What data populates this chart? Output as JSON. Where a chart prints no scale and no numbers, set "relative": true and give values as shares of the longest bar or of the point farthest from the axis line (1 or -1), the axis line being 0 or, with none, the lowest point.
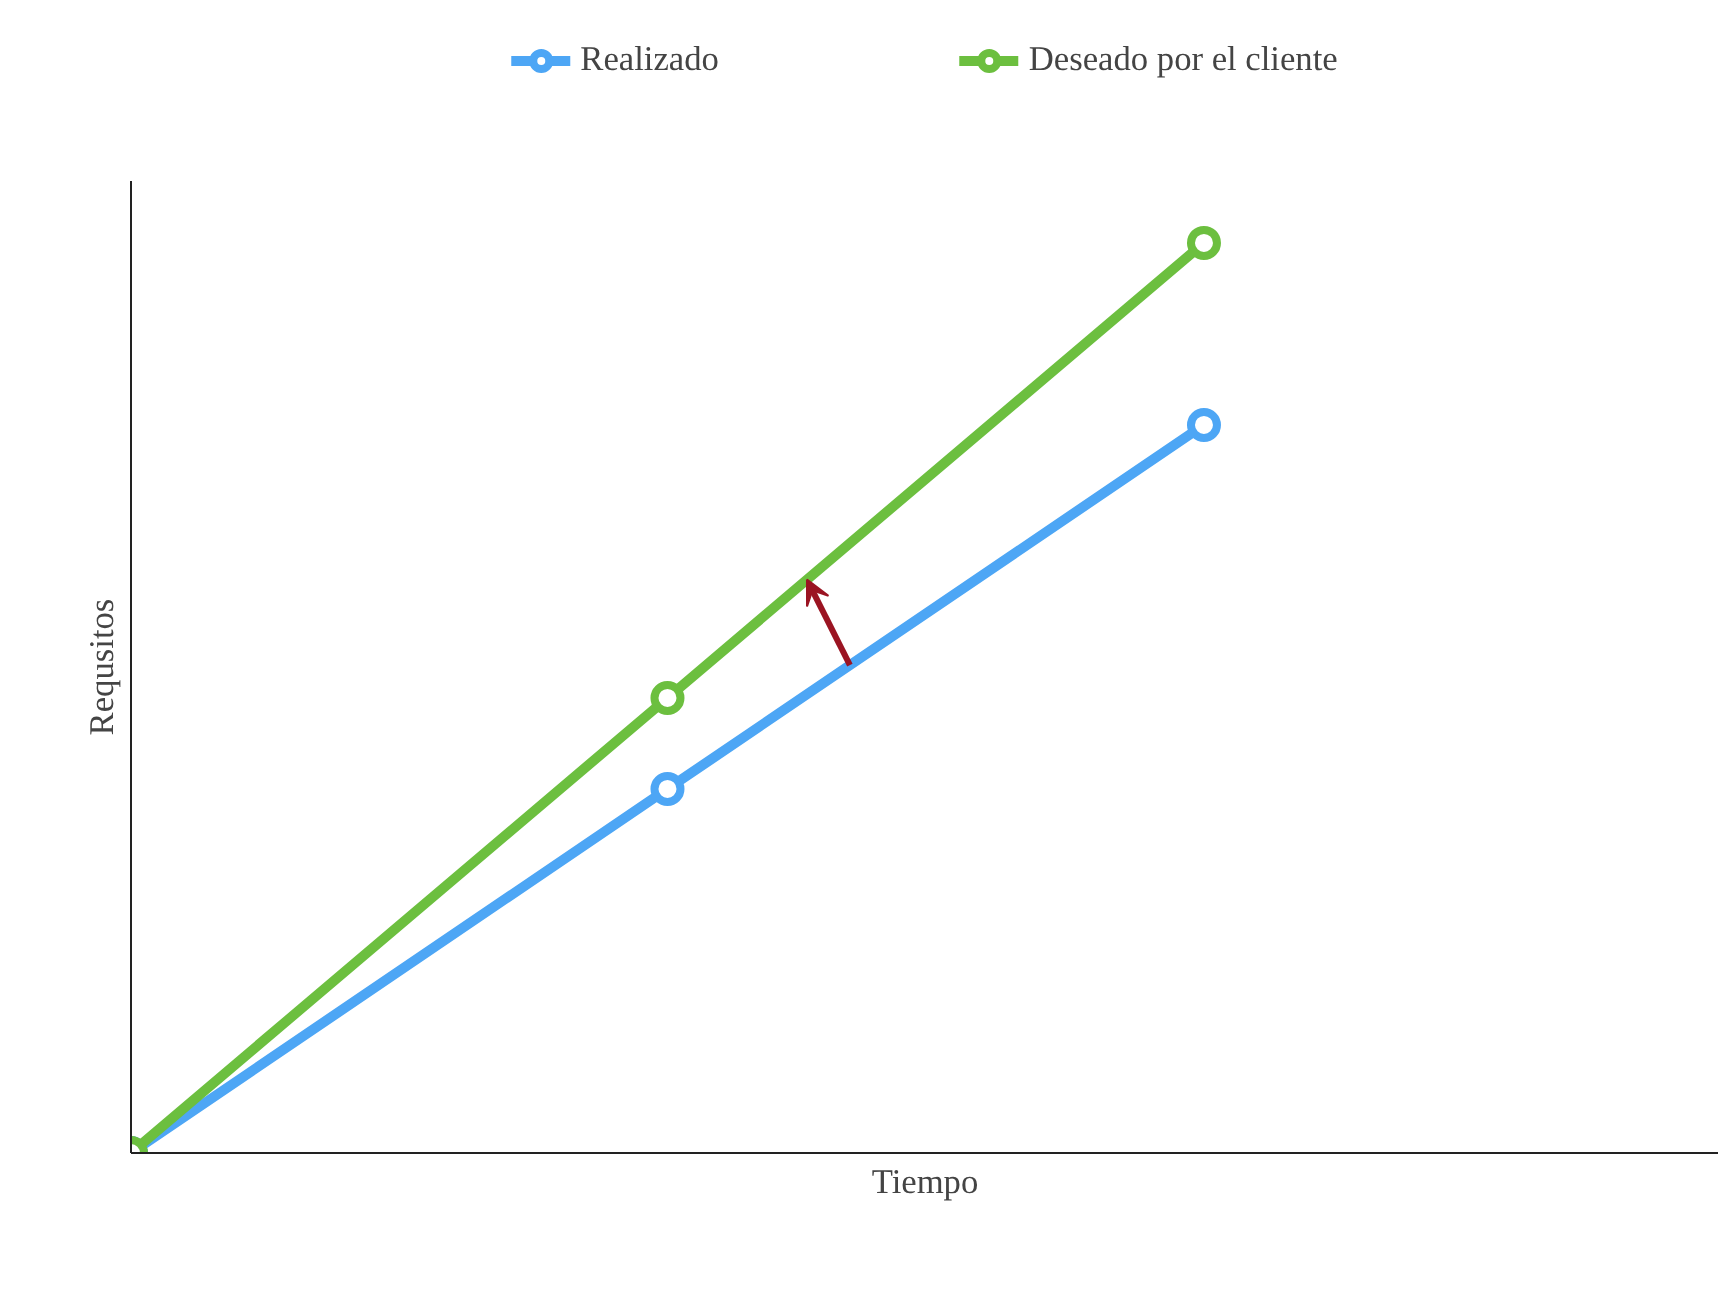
{
  "chart_data": {
    "type": "line",
    "relative": true,
    "xlabel": "Tiempo",
    "ylabel": "Requsitos",
    "categories": [
      null,
      null,
      null
    ],
    "series": [
      {
        "name": "Realizado",
        "color": "#4da6f5",
        "values": [
          0,
          0.4,
          0.8
        ]
      },
      {
        "name": "Deseado por el cliente",
        "color": "#6cbf3f",
        "values": [
          0,
          0.5,
          1
        ]
      }
    ],
    "marker": "circle",
    "line_style": "solid",
    "legend": "top"
  }
}
